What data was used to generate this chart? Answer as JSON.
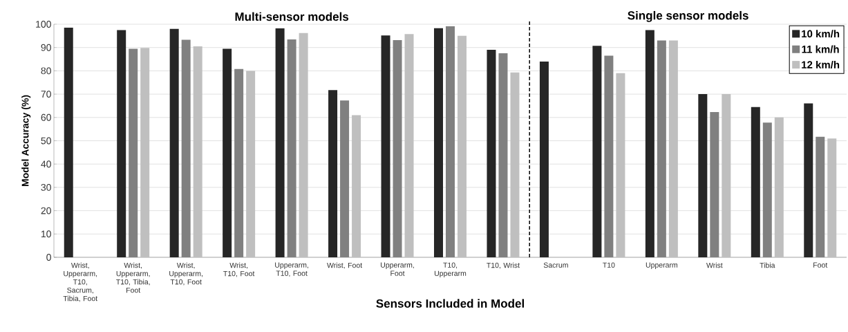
{
  "chart_data": {
    "type": "bar",
    "xlabel": "Sensors Included in Model",
    "ylabel": "Model Accuracy (%)",
    "categories": [
      "Wrist, Upperarm, T10, Sacrum, Tibia, Foot",
      "Wrist, Upperarm, T10, Tibia, Foot",
      "Wrist, Upperarm, T10, Foot",
      "Wrist, T10, Foot",
      "Upperarm, T10, Foot",
      "Wrist, Foot",
      "Upperarm, Foot",
      "T10, Upperarm",
      "T10, Wrist",
      "Sacrum",
      "T10",
      "Upperarm",
      "Wrist",
      "Tibia",
      "Foot"
    ],
    "series": [
      {
        "name": "10 km/h",
        "color": "#262626",
        "values": [
          98.5,
          97.5,
          98,
          89.5,
          98.2,
          71.7,
          95.2,
          98.3,
          89,
          84,
          90.7,
          97.5,
          70,
          64.5,
          66
        ]
      },
      {
        "name": "11 km/h",
        "color": "#808080",
        "values": [
          null,
          89.5,
          93.3,
          80.8,
          93.5,
          67.3,
          93.2,
          99.1,
          87.5,
          null,
          86.5,
          93,
          62.3,
          57.8,
          51.7
        ]
      },
      {
        "name": "12 km/h",
        "color": "#bfbfbf",
        "values": [
          null,
          89.8,
          90.5,
          80,
          96.2,
          61,
          95.8,
          95,
          79.3,
          null,
          79,
          93,
          70,
          60,
          51
        ]
      }
    ],
    "ylim": [
      0,
      100
    ],
    "yticks": [
      0,
      10,
      20,
      30,
      40,
      50,
      60,
      70,
      80,
      90,
      100
    ],
    "grid": "y",
    "legend": "top right",
    "annotations": [
      "Multi-sensor models",
      "Single sensor models"
    ]
  }
}
